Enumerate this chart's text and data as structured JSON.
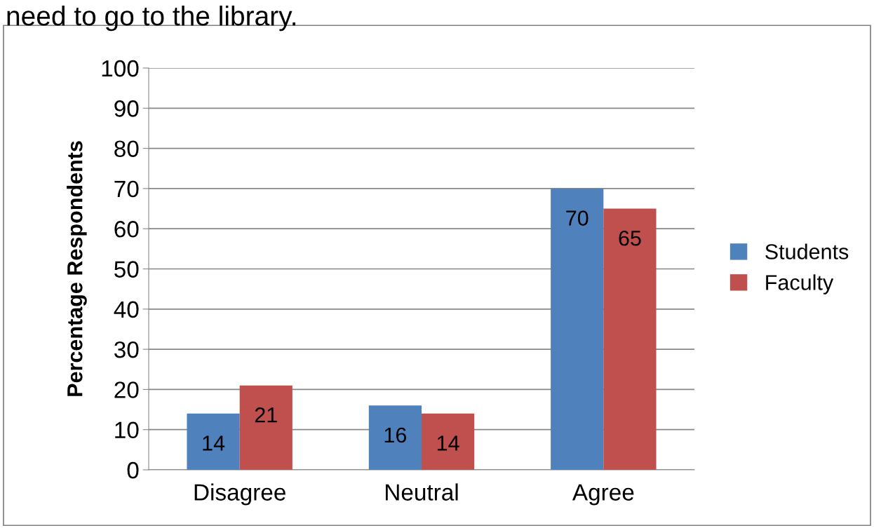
{
  "chart_data": {
    "type": "bar",
    "title": "need to go to the library.",
    "ylabel": "Percentage Respondents",
    "categories": [
      "Disagree",
      "Neutral",
      "Agree"
    ],
    "series": [
      {
        "name": "Students",
        "color": "#4f81bd",
        "values": [
          14,
          16,
          70
        ]
      },
      {
        "name": "Faculty",
        "color": "#c0504d",
        "values": [
          21,
          14,
          65
        ]
      }
    ],
    "ylim": [
      0,
      100
    ],
    "yticks": [
      0,
      10,
      20,
      30,
      40,
      50,
      60,
      70,
      80,
      90,
      100
    ],
    "grid": "y",
    "legend": "right",
    "data_labels": true
  }
}
